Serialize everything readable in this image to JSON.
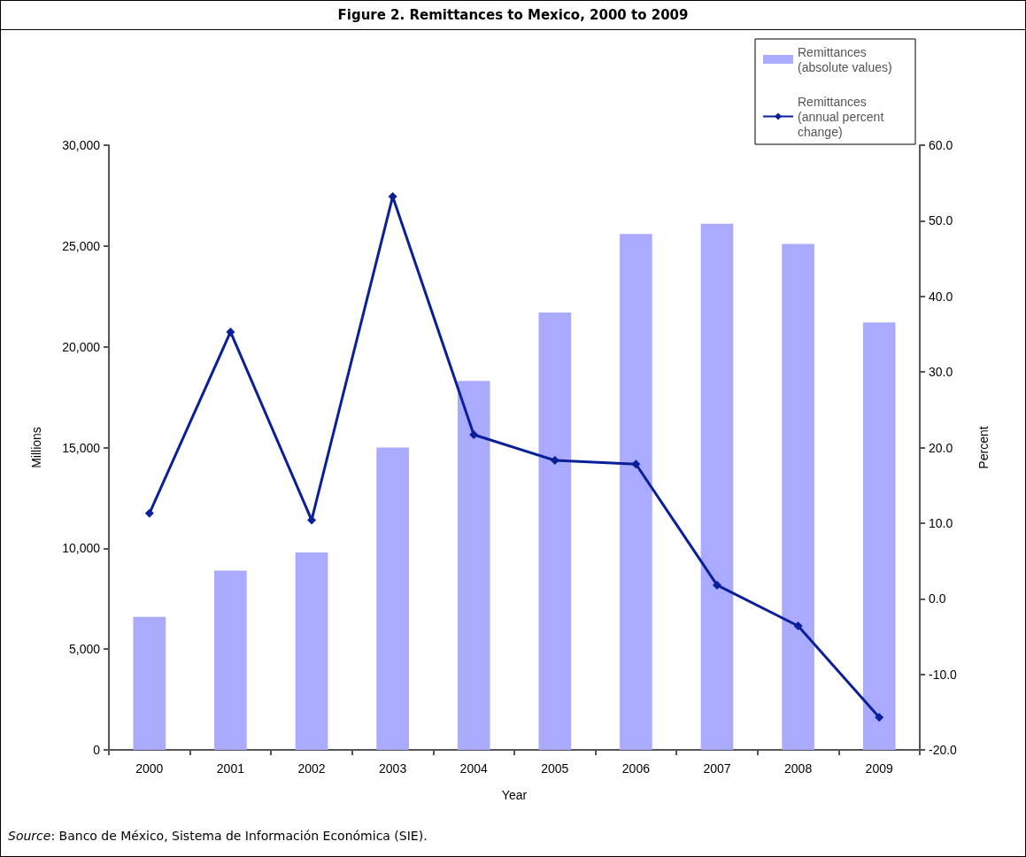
{
  "chart_data": {
    "type": "bar",
    "title": "Figure 2. Remittances to Mexico, 2000 to 2009",
    "categories": [
      "2000",
      "2001",
      "2002",
      "2003",
      "2004",
      "2005",
      "2006",
      "2007",
      "2008",
      "2009"
    ],
    "series": [
      {
        "name": "Remittances (absolute values)",
        "color": "#aaaaff",
        "values": [
          6600,
          8900,
          9800,
          15000,
          18300,
          21700,
          25600,
          26100,
          25100,
          21200
        ]
      },
      {
        "name": "Remittances (annual percent change)",
        "type": "line",
        "axis": "y2",
        "color": "#0a1f9a",
        "marker": "diamond",
        "values": [
          11.3,
          35.3,
          10.4,
          53.2,
          21.7,
          18.3,
          17.8,
          1.8,
          -3.6,
          -15.7
        ]
      }
    ],
    "xlabel": "Year",
    "ylabel": "Millions",
    "y2label": "Percent",
    "ylim": [
      0,
      30000
    ],
    "yticks": [
      0,
      {
        "value": 5000,
        "label": "5,000"
      },
      {
        "value": 10000,
        "label": "10,000"
      },
      {
        "value": 15000,
        "label": "15,000"
      },
      {
        "value": 20000,
        "label": "20,000"
      },
      {
        "value": 25000,
        "label": "25,000"
      },
      {
        "value": 30000,
        "label": "30,000"
      }
    ],
    "y2lim": [
      -20,
      60
    ],
    "y2ticks": [
      {
        "value": -20,
        "label": "-20.0"
      },
      {
        "value": -10,
        "label": "-10.0"
      },
      {
        "value": 0,
        "label": "0.0"
      },
      {
        "value": 10,
        "label": "10.0"
      },
      {
        "value": 20,
        "label": "20.0"
      },
      {
        "value": 30,
        "label": "30.0"
      },
      {
        "value": 40,
        "label": "40.0"
      },
      {
        "value": 50,
        "label": "50.0"
      },
      {
        "value": 60,
        "label": "60.0"
      }
    ],
    "grid": false,
    "legend": "top right",
    "annotations": [
      "Source: Banco de México, Sistema de Información Económica (SIE)."
    ]
  }
}
